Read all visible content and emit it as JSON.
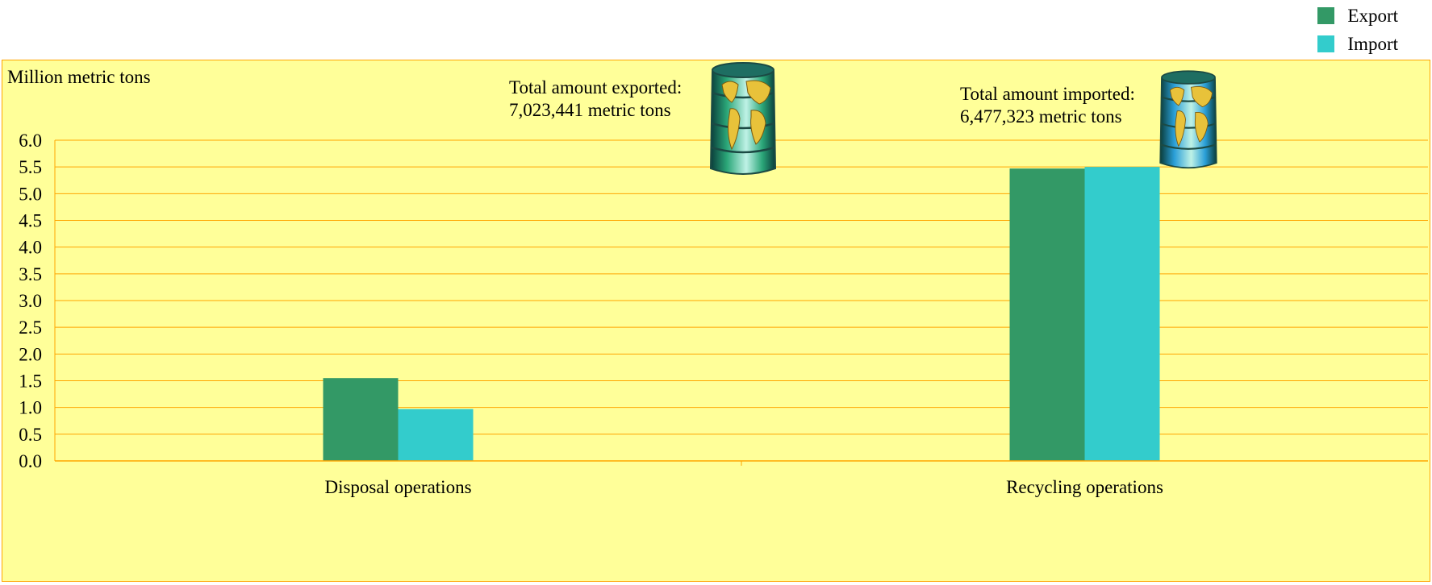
{
  "legend": {
    "items": [
      {
        "label": "Export",
        "color": "#339966"
      },
      {
        "label": "Import",
        "color": "#33cccc"
      }
    ]
  },
  "annotations": {
    "export_total": {
      "line1": "Total amount exported:",
      "line2": "7,023,441 metric tons",
      "icon": "export-barrel-globe-icon",
      "barrel_color": "#2aa678"
    },
    "import_total": {
      "line1": "Total amount imported:",
      "line2": "6,477,323 metric tons",
      "icon": "import-barrel-globe-icon",
      "barrel_color": "#2a9fd8"
    }
  },
  "colors": {
    "panel_background": "#ffff99",
    "gridline": "#ffa500",
    "axis": "#ffa500"
  },
  "chart_data": {
    "type": "bar",
    "ylabel": "Million metric tons",
    "categories": [
      "Disposal operations",
      "Recycling operations"
    ],
    "series": [
      {
        "name": "Export",
        "values": [
          1.55,
          5.47
        ],
        "color": "#339966"
      },
      {
        "name": "Import",
        "values": [
          0.97,
          5.5
        ],
        "color": "#33cccc"
      }
    ],
    "ylim": [
      0,
      6.0
    ],
    "yticks": [
      "0.0",
      "0.5",
      "1.0",
      "1.5",
      "2.0",
      "2.5",
      "3.0",
      "3.5",
      "4.0",
      "4.5",
      "5.0",
      "5.5",
      "6.0"
    ],
    "grid": true,
    "legend_position": "top-right"
  }
}
